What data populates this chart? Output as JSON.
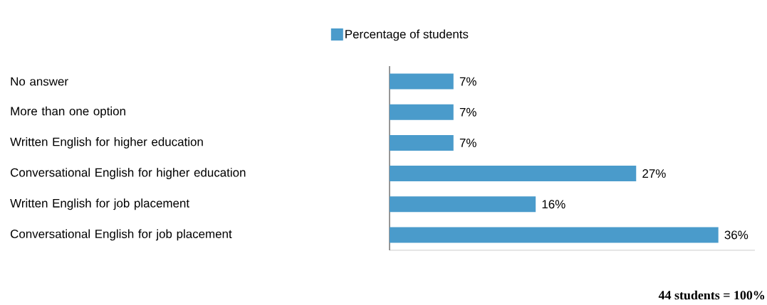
{
  "chart_data": {
    "type": "bar",
    "orientation": "horizontal",
    "categories": [
      "No answer",
      "More than one option",
      "Written English for higher education",
      "Conversational English for higher education",
      "Written English for job placement",
      "Conversational English for job placement"
    ],
    "series": [
      {
        "name": "Percentage of students",
        "color": "#4a9bcb",
        "values": [
          7,
          7,
          7,
          27,
          16,
          36
        ],
        "value_labels": [
          "7%",
          "7%",
          "7%",
          "27%",
          "16%",
          "36%"
        ]
      }
    ],
    "xlim": [
      0,
      40
    ],
    "tick_labels": "y",
    "legend": "top",
    "grid": false,
    "annotations": [
      "44 students = 100%"
    ]
  }
}
